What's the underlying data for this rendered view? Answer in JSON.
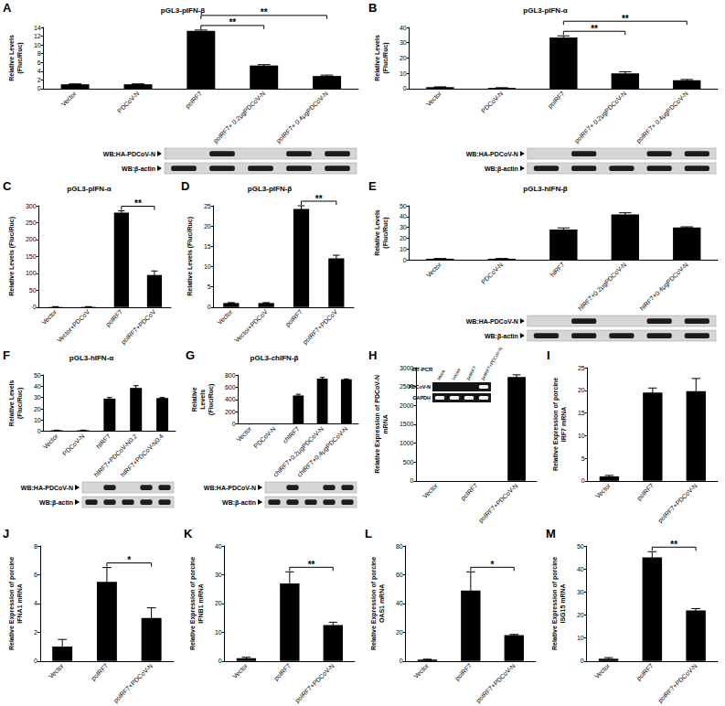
{
  "chart_data": [
    {
      "panel": "A",
      "type": "bar",
      "title": "pGL3-pIFN-β",
      "ylabel": "Relative Levels (Fluc/Ruc)",
      "categories": [
        "Vector",
        "PDCoV-N",
        "poIRF7",
        "poIRF7+ 0.2μgPDCoV-N",
        "poIRF7+ 0.4μgPDCoV-N"
      ],
      "values": [
        1,
        1,
        13.2,
        5.3,
        2.9
      ],
      "errors": [
        0.1,
        0.1,
        0.2,
        0.2,
        0.2
      ],
      "color": "#000000",
      "ylim": [
        0,
        14
      ],
      "yticks": [
        0,
        2,
        4,
        6,
        8,
        10,
        12,
        14
      ],
      "grid": false,
      "significance": [
        {
          "text": "**",
          "between": [
            "poIRF7",
            "poIRF7+ 0.2μgPDCoV-N"
          ]
        },
        {
          "text": "**",
          "between": [
            "poIRF7",
            "poIRF7+ 0.4μgPDCoV-N"
          ]
        }
      ],
      "blot": [
        {
          "label": "WB:HA-PDCoV-N",
          "bands": [
            false,
            true,
            false,
            true,
            true
          ]
        },
        {
          "label": "WB:β-actin",
          "bands": [
            true,
            true,
            true,
            true,
            true
          ]
        }
      ]
    },
    {
      "panel": "B",
      "type": "bar",
      "title": "pGL3-pIFN-α",
      "ylabel": "Relative Levels (Fluc/Ruc)",
      "categories": [
        "Vector",
        "PDCoV-N",
        "poIRF7",
        "poIRF7+ 0.2μgPDCoV-N",
        "poIRF7+ 0.4μgPDCoV-N"
      ],
      "values": [
        1,
        0.5,
        33.5,
        10,
        5.5
      ],
      "errors": [
        0.2,
        0.1,
        1,
        1,
        0.5
      ],
      "color": "#000000",
      "ylim": [
        0,
        40
      ],
      "yticks": [
        0,
        10,
        20,
        30,
        40
      ],
      "grid": false,
      "significance": [
        {
          "text": "**",
          "between": [
            "poIRF7",
            "poIRF7+ 0.2μgPDCoV-N"
          ]
        },
        {
          "text": "**",
          "between": [
            "poIRF7",
            "poIRF7+ 0.4μgPDCoV-N"
          ]
        }
      ],
      "blot": [
        {
          "label": "WB:HA-PDCoV-N",
          "bands": [
            false,
            true,
            false,
            true,
            true
          ]
        },
        {
          "label": "WB:β-actin",
          "bands": [
            true,
            true,
            true,
            true,
            true
          ]
        }
      ]
    },
    {
      "panel": "C",
      "type": "bar",
      "title": "pGL3-pIFN-α",
      "ylabel": "Relative Levels (Fluc/Ruc)",
      "categories": [
        "Vector",
        "Vector+PDCoV",
        "poIRF7",
        "poIRF7+PDCoV"
      ],
      "values": [
        1,
        1,
        280,
        95
      ],
      "errors": [
        0.2,
        0.2,
        5,
        12
      ],
      "color": "#000000",
      "ylim": [
        0,
        300
      ],
      "yticks": [
        0,
        50,
        100,
        150,
        200,
        250,
        300
      ],
      "grid": false,
      "significance": [
        {
          "text": "**",
          "between": [
            "poIRF7",
            "poIRF7+PDCoV"
          ]
        }
      ]
    },
    {
      "panel": "D",
      "type": "bar",
      "title": "pGL3-pIFN-β",
      "ylabel": "Relative Levels (Fluc/Ruc)",
      "categories": [
        "Vector",
        "Vector+PDCoV",
        "poIRF7",
        "poIRF7+PDCoV"
      ],
      "values": [
        1,
        1,
        24.2,
        12
      ],
      "errors": [
        0.1,
        0.1,
        0.8,
        0.8
      ],
      "color": "#000000",
      "ylim": [
        0,
        25
      ],
      "yticks": [
        0,
        5,
        10,
        15,
        20,
        25
      ],
      "grid": false,
      "significance": [
        {
          "text": "**",
          "between": [
            "poIRF7",
            "poIRF7+PDCoV"
          ]
        }
      ]
    },
    {
      "panel": "E",
      "type": "bar",
      "title": "pGL3-hIFN-β",
      "ylabel": "Relative Levels (Fluc/Ruc)",
      "categories": [
        "Vector",
        "PDCoV-N",
        "hIRF7",
        "hIRF7+0.2μgPDCoV-N",
        "hIRF7+0.4μgPDCoV-N"
      ],
      "values": [
        1,
        1,
        28,
        42,
        30
      ],
      "errors": [
        0.1,
        0.1,
        1.5,
        1.5,
        0.5
      ],
      "color": "#000000",
      "ylim": [
        0,
        50
      ],
      "yticks": [
        0,
        10,
        20,
        30,
        40,
        50
      ],
      "grid": false,
      "significance": [],
      "blot": [
        {
          "label": "WB:HA-PDCoV-N",
          "bands": [
            false,
            true,
            false,
            true,
            true
          ]
        },
        {
          "label": "WB:β-actin",
          "bands": [
            true,
            true,
            true,
            true,
            true
          ]
        }
      ]
    },
    {
      "panel": "F",
      "type": "bar",
      "title": "pGL3-hIFN-α",
      "ylabel": "Relative Levels (Fluc/Ruc)",
      "categories": [
        "Vector",
        "PDCoV-N",
        "hIRF7",
        "hIRF7+PDCoV-N0.2",
        "hIRF7+PDCoV-N0.4"
      ],
      "values": [
        1,
        1,
        29,
        38.5,
        29.5
      ],
      "errors": [
        0.1,
        0.1,
        1,
        2,
        0.5
      ],
      "color": "#000000",
      "ylim": [
        0,
        50
      ],
      "yticks": [
        0,
        10,
        20,
        30,
        40,
        50
      ],
      "grid": false,
      "significance": [],
      "blot": [
        {
          "label": "WB:HA-PDCoV-N",
          "bands": [
            false,
            true,
            false,
            true,
            true
          ]
        },
        {
          "label": "WB:β-actin",
          "bands": [
            true,
            true,
            true,
            true,
            true
          ]
        }
      ]
    },
    {
      "panel": "G",
      "type": "bar",
      "title": "pGL3-chIFN-β",
      "ylabel": "Relative Levels (Fluc/Ruc)",
      "categories": [
        "Vector",
        "PDCoV-N",
        "chIRF7",
        "chIRF7+0.2μgPDCoV-N",
        "chIRF7+0.4μgPDCoV-N"
      ],
      "values": [
        1,
        1,
        465,
        740,
        730
      ],
      "errors": [
        1,
        1,
        20,
        20,
        5
      ],
      "color": "#000000",
      "ylim": [
        0,
        800
      ],
      "yticks": [
        0,
        200,
        400,
        600,
        800
      ],
      "grid": false,
      "significance": [],
      "blot": [
        {
          "label": "WB:HA-PDCoV-N",
          "bands": [
            false,
            true,
            false,
            true,
            true
          ]
        },
        {
          "label": "WB:β-actin",
          "bands": [
            true,
            true,
            true,
            true,
            true
          ]
        }
      ]
    },
    {
      "panel": "H",
      "type": "bar",
      "ylabel": "Relative Expression of PDCoV-N mRNA",
      "categories": [
        "Vector",
        "poIRF7",
        "poIRF7+PDCoV-N"
      ],
      "values": [
        0,
        0,
        2750
      ],
      "errors": [
        0,
        0,
        60
      ],
      "color": "#000000",
      "ylim": [
        0,
        3000
      ],
      "yticks": [
        0,
        500,
        1000,
        1500,
        2000,
        2500,
        3000
      ],
      "grid": false,
      "significance": [],
      "inset": {
        "title": "RT-PCR",
        "columns": [
          "Mock",
          "Vector",
          "poIRF7",
          "poIRF7+PDCoV-N"
        ],
        "rows": [
          {
            "label": "PDCoV-N",
            "bands": [
              false,
              false,
              false,
              true
            ]
          },
          {
            "label": "GAPDH",
            "bands": [
              true,
              true,
              true,
              true
            ]
          }
        ]
      }
    },
    {
      "panel": "I",
      "type": "bar",
      "ylabel": "Relative Expression of porcine IRF7 mRNA",
      "categories": [
        "Vector",
        "poIRF7",
        "poIRF7+PDCoV-N"
      ],
      "values": [
        1,
        19.5,
        19.8
      ],
      "errors": [
        0.2,
        1,
        2.8
      ],
      "color": "#000000",
      "ylim": [
        0,
        25
      ],
      "yticks": [
        0,
        5,
        10,
        15,
        20,
        25
      ],
      "grid": false,
      "significance": []
    },
    {
      "panel": "J",
      "type": "bar",
      "ylabel": "Relative Expression of porcine IFNA1 mRNA",
      "categories": [
        "Vector",
        "poIRF7",
        "poIRF7+PDCoV-N"
      ],
      "values": [
        1,
        5.5,
        3
      ],
      "errors": [
        0.5,
        1,
        0.7
      ],
      "color": "#000000",
      "ylim": [
        0,
        8
      ],
      "yticks": [
        0,
        2,
        4,
        6,
        8
      ],
      "grid": false,
      "significance": [
        {
          "text": "*",
          "between": [
            "poIRF7",
            "poIRF7+PDCoV-N"
          ]
        }
      ]
    },
    {
      "panel": "K",
      "type": "bar",
      "ylabel": "Relative Expression of porcine IFNB1 mRNA",
      "categories": [
        "Vector",
        "poIRF7",
        "poIRF7+PDCoV-N"
      ],
      "values": [
        1,
        27,
        12.5
      ],
      "errors": [
        0.3,
        4,
        1
      ],
      "color": "#000000",
      "ylim": [
        0,
        40
      ],
      "yticks": [
        0,
        10,
        20,
        30,
        40
      ],
      "grid": false,
      "significance": [
        {
          "text": "**",
          "between": [
            "poIRF7",
            "poIRF7+PDCoV-N"
          ]
        }
      ]
    },
    {
      "panel": "L",
      "type": "bar",
      "ylabel": "Relative Expression of porcine OAS1 mRNA",
      "categories": [
        "Vector",
        "poIRF7",
        "poIRF7+PDCoV-N"
      ],
      "values": [
        1,
        49,
        18
      ],
      "errors": [
        0.3,
        13,
        0.5
      ],
      "color": "#000000",
      "ylim": [
        0,
        80
      ],
      "yticks": [
        0,
        20,
        40,
        60,
        80
      ],
      "grid": false,
      "significance": [
        {
          "text": "*",
          "between": [
            "poIRF7",
            "poIRF7+PDCoV-N"
          ]
        }
      ]
    },
    {
      "panel": "M",
      "type": "bar",
      "ylabel": "Relative Expression of porcine ISG15 mRNA",
      "categories": [
        "Vector",
        "poIRF7",
        "poIRF7+PDCoV-N"
      ],
      "values": [
        1,
        45,
        22
      ],
      "errors": [
        0.5,
        2.5,
        0.8
      ],
      "color": "#000000",
      "ylim": [
        0,
        50
      ],
      "yticks": [
        0,
        10,
        20,
        30,
        40,
        50
      ],
      "grid": false,
      "significance": [
        {
          "text": "**",
          "between": [
            "poIRF7",
            "poIRF7+PDCoV-N"
          ]
        }
      ]
    }
  ]
}
